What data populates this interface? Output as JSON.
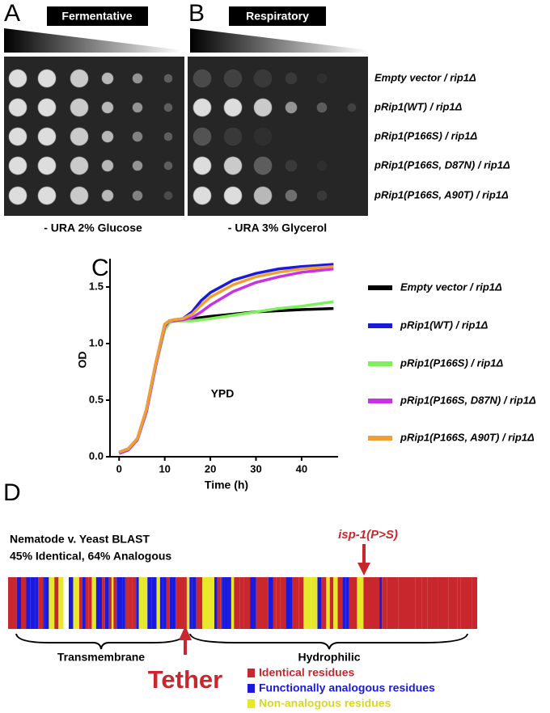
{
  "panels": {
    "a": {
      "label": "A",
      "header": "Fermentative",
      "medium": "- URA 2% Glucose"
    },
    "b": {
      "label": "B",
      "header": "Respiratory",
      "medium": "- URA 3% Glycerol"
    },
    "strains": [
      "Empty vector / rip1Δ",
      "pRip1(WT) / rip1Δ",
      "pRip1(P166S) / rip1Δ",
      "pRip1(P166S, D87N) / rip1Δ",
      "pRip1(P166S, A90T) / rip1Δ"
    ]
  },
  "chart_data": {
    "type": "line",
    "panel_label": "C",
    "annotation": "YPD",
    "xlabel": "Time (h)",
    "ylabel": "OD",
    "x": [
      0,
      2,
      4,
      6,
      8,
      10,
      11,
      12,
      14,
      16,
      18,
      20,
      25,
      30,
      35,
      40,
      47
    ],
    "series": [
      {
        "name": "Empty vector / rip1Δ",
        "color": "#000000",
        "values": [
          0.03,
          0.06,
          0.15,
          0.4,
          0.8,
          1.15,
          1.2,
          1.2,
          1.21,
          1.22,
          1.23,
          1.24,
          1.26,
          1.28,
          1.29,
          1.3,
          1.31
        ]
      },
      {
        "name": "pRip1(WT) / rip1Δ",
        "color": "#1a1adc",
        "values": [
          0.04,
          0.07,
          0.16,
          0.42,
          0.82,
          1.17,
          1.2,
          1.21,
          1.22,
          1.28,
          1.38,
          1.45,
          1.56,
          1.62,
          1.66,
          1.68,
          1.7
        ]
      },
      {
        "name": "pRip1(P166S) / rip1Δ",
        "color": "#7cf25a",
        "values": [
          0.03,
          0.06,
          0.15,
          0.4,
          0.8,
          1.12,
          1.18,
          1.2,
          1.2,
          1.2,
          1.21,
          1.22,
          1.25,
          1.28,
          1.31,
          1.33,
          1.37
        ]
      },
      {
        "name": "pRip1(P166S, D87N) / rip1Δ",
        "color": "#c832e6",
        "values": [
          0.03,
          0.06,
          0.15,
          0.4,
          0.8,
          1.15,
          1.2,
          1.2,
          1.21,
          1.23,
          1.28,
          1.34,
          1.46,
          1.54,
          1.59,
          1.63,
          1.66
        ]
      },
      {
        "name": "pRip1(P166S, A90T) / rip1Δ",
        "color": "#f0a030",
        "values": [
          0.04,
          0.07,
          0.16,
          0.42,
          0.82,
          1.17,
          1.2,
          1.21,
          1.22,
          1.26,
          1.34,
          1.41,
          1.52,
          1.59,
          1.63,
          1.66,
          1.68
        ]
      }
    ],
    "xlim": [
      -2,
      48
    ],
    "ylim": [
      0,
      1.75
    ],
    "xticks": [
      0,
      10,
      20,
      30,
      40
    ],
    "yticks": [
      {
        "value": 0,
        "label": "0.0"
      },
      0.5,
      {
        "value": 1,
        "label": "1.0"
      },
      1.5
    ]
  },
  "panel_d": {
    "label": "D",
    "title": "Nematode v. Yeast BLAST",
    "subtitle": "45% Identical, 64% Analogous",
    "mutation": "isp-1(P>S)",
    "region1": "Transmembrane",
    "region2": "Hydrophilic",
    "tether": "Tether",
    "legend": [
      "Identical residues",
      "Functionally analogous residues",
      "Non-analogous residues"
    ]
  }
}
